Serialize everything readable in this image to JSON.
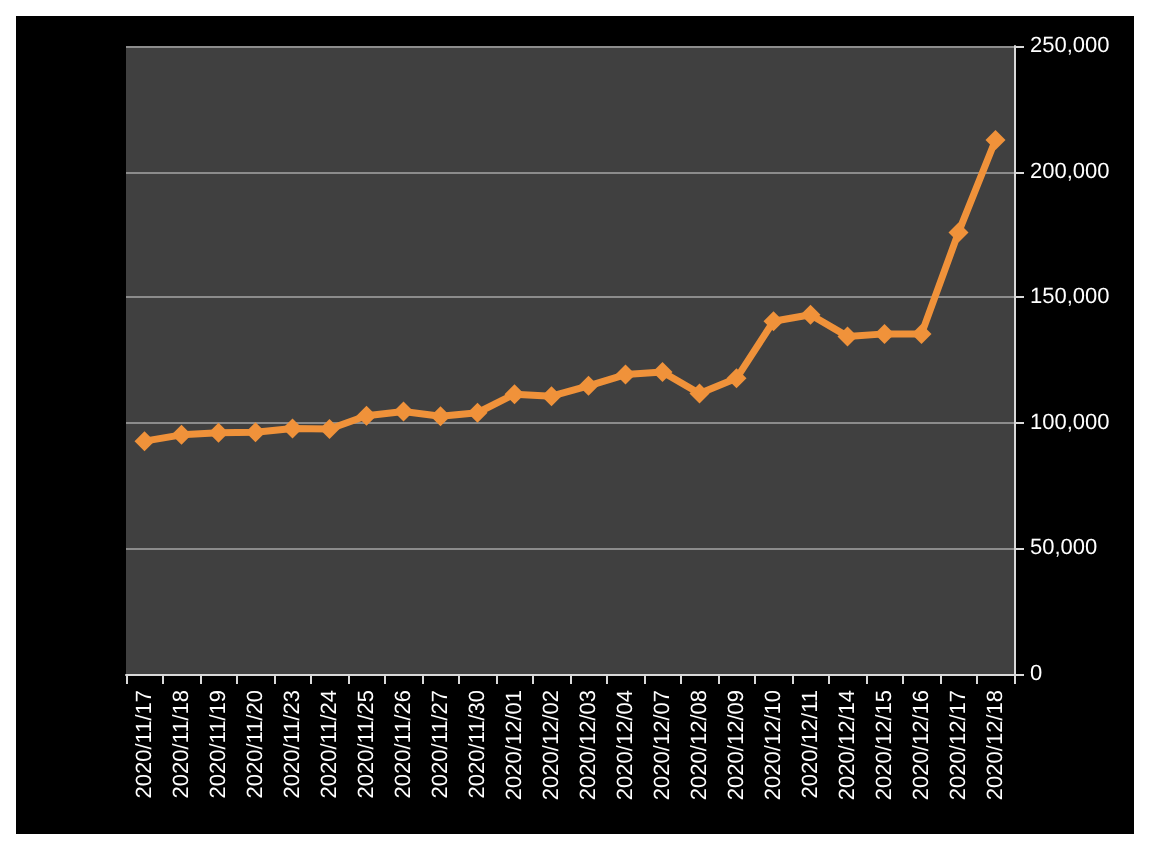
{
  "chart_data": {
    "type": "line",
    "categories": [
      "2020/11/17",
      "2020/11/18",
      "2020/11/19",
      "2020/11/20",
      "2020/11/23",
      "2020/11/24",
      "2020/11/25",
      "2020/11/26",
      "2020/11/27",
      "2020/11/30",
      "2020/12/01",
      "2020/12/02",
      "2020/12/03",
      "2020/12/04",
      "2020/12/07",
      "2020/12/08",
      "2020/12/09",
      "2020/12/10",
      "2020/12/11",
      "2020/12/14",
      "2020/12/15",
      "2020/12/16",
      "2020/12/17",
      "2020/12/18"
    ],
    "series": [
      {
        "color": "#f0923a",
        "values": [
          92700,
          95200,
          96000,
          96200,
          97700,
          97500,
          102800,
          104500,
          102600,
          104000,
          111400,
          110600,
          114700,
          119200,
          120200,
          111700,
          117700,
          140400,
          143000,
          134400,
          135400,
          135400,
          175800,
          212600
        ]
      }
    ],
    "ylim": [
      0,
      250000
    ],
    "yticks": [
      {
        "value": 0,
        "label": "0"
      },
      {
        "value": 50000,
        "label": "50,000"
      },
      {
        "value": 100000,
        "label": "100,000"
      },
      {
        "value": 150000,
        "label": "150,000"
      },
      {
        "value": 200000,
        "label": "200,000"
      },
      {
        "value": 250000,
        "label": "250,000"
      }
    ],
    "grid": "y",
    "marker": "diamond",
    "line_style": "solid"
  }
}
